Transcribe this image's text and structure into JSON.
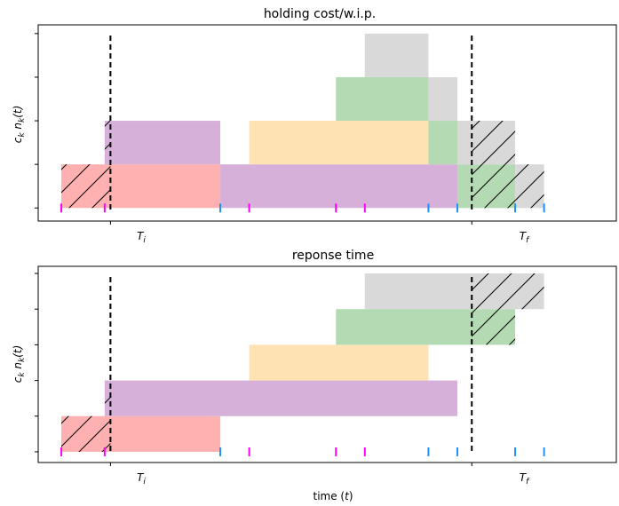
{
  "figure": {
    "xlabel_text": "time (",
    "xlabel_var": "t",
    "xlabel_close": ")"
  },
  "chart_data": [
    {
      "type": "bar",
      "title": "holding cost/w.i.p.",
      "ylabel": "c_k n_k(t)",
      "ylabel_parts": {
        "c": "c",
        "k1": "k",
        "n": "n",
        "k2": "k",
        "arg": "(t)"
      },
      "xlim": [
        0,
        20
      ],
      "ylim": [
        -0.3,
        4.2
      ],
      "grid": false,
      "legend": "none",
      "ytick_values": [
        0,
        1,
        2,
        3,
        4
      ],
      "xticks": [
        {
          "x": 2.5,
          "base": "T",
          "sub": "i"
        },
        {
          "x": 15.0,
          "base": "T",
          "sub": "f"
        }
      ],
      "vlines": [
        2.5,
        15.0
      ],
      "rects": [
        {
          "x0": 0.8,
          "x1": 6.3,
          "y0": 0,
          "y1": 1,
          "color": "#ffb0b0"
        },
        {
          "x0": 6.3,
          "x1": 14.5,
          "y0": 0,
          "y1": 1,
          "color": "#d7b0da"
        },
        {
          "x0": 14.5,
          "x1": 16.5,
          "y0": 0,
          "y1": 1,
          "color": "#b3dab3"
        },
        {
          "x0": 16.5,
          "x1": 17.5,
          "y0": 0,
          "y1": 1,
          "color": "#d9d9d9"
        },
        {
          "x0": 2.3,
          "x1": 6.3,
          "y0": 1,
          "y1": 2,
          "color": "#d7b0da"
        },
        {
          "x0": 7.3,
          "x1": 13.5,
          "y0": 1,
          "y1": 2,
          "color": "#ffe2b3"
        },
        {
          "x0": 13.5,
          "x1": 14.5,
          "y0": 1,
          "y1": 2,
          "color": "#b3dab3"
        },
        {
          "x0": 14.5,
          "x1": 16.5,
          "y0": 1,
          "y1": 2,
          "color": "#d9d9d9"
        },
        {
          "x0": 10.3,
          "x1": 13.5,
          "y0": 2,
          "y1": 3,
          "color": "#b3dab3"
        },
        {
          "x0": 13.5,
          "x1": 14.5,
          "y0": 2,
          "y1": 3,
          "color": "#d9d9d9"
        },
        {
          "x0": 11.3,
          "x1": 13.5,
          "y0": 3,
          "y1": 4,
          "color": "#d9d9d9"
        }
      ],
      "hatched": [
        {
          "x0": 0.8,
          "x1": 2.5,
          "y0": 0,
          "y1": 1
        },
        {
          "x0": 2.3,
          "x1": 2.5,
          "y0": 1,
          "y1": 2
        },
        {
          "x0": 15.0,
          "x1": 17.5,
          "y0": 0,
          "y1": 1
        },
        {
          "x0": 15.0,
          "x1": 16.5,
          "y0": 1,
          "y1": 2
        }
      ],
      "arrival_marks": [
        0.8,
        2.3,
        7.3,
        10.3,
        11.3
      ],
      "departure_marks": [
        6.3,
        13.5,
        14.5,
        16.5,
        17.5
      ]
    },
    {
      "type": "bar",
      "title": "reponse time",
      "ylabel": "c_k n_k(t)",
      "ylabel_parts": {
        "c": "c",
        "k1": "k",
        "n": "n",
        "k2": "k",
        "arg": "(t)"
      },
      "xlim": [
        0,
        20
      ],
      "ylim": [
        -0.3,
        5.2
      ],
      "grid": false,
      "legend": "none",
      "ytick_values": [
        0,
        1,
        2,
        3,
        4,
        5
      ],
      "xticks": [
        {
          "x": 2.5,
          "base": "T",
          "sub": "i"
        },
        {
          "x": 15.0,
          "base": "T",
          "sub": "f"
        }
      ],
      "vlines": [
        2.5,
        15.0
      ],
      "rects": [
        {
          "x0": 0.8,
          "x1": 6.3,
          "y0": 0,
          "y1": 1,
          "color": "#ffb0b0"
        },
        {
          "x0": 2.3,
          "x1": 14.5,
          "y0": 1,
          "y1": 2,
          "color": "#d7b0da"
        },
        {
          "x0": 7.3,
          "x1": 13.5,
          "y0": 2,
          "y1": 3,
          "color": "#ffe2b3"
        },
        {
          "x0": 10.3,
          "x1": 16.5,
          "y0": 3,
          "y1": 4,
          "color": "#b3dab3"
        },
        {
          "x0": 11.3,
          "x1": 17.5,
          "y0": 4,
          "y1": 5,
          "color": "#d9d9d9"
        }
      ],
      "hatched": [
        {
          "x0": 0.8,
          "x1": 2.5,
          "y0": 0,
          "y1": 1
        },
        {
          "x0": 2.3,
          "x1": 2.5,
          "y0": 1,
          "y1": 2
        },
        {
          "x0": 15.0,
          "x1": 16.5,
          "y0": 3,
          "y1": 4
        },
        {
          "x0": 15.0,
          "x1": 17.5,
          "y0": 4,
          "y1": 5
        }
      ],
      "arrival_marks": [
        0.8,
        2.3,
        7.3,
        10.3,
        11.3
      ],
      "departure_marks": [
        6.3,
        13.5,
        14.5,
        16.5,
        17.5
      ]
    }
  ],
  "colors": {
    "arrival_mark": "#ff00ff",
    "departure_mark": "#1e90ff",
    "vline": "#000000",
    "hatch": "#000000"
  }
}
